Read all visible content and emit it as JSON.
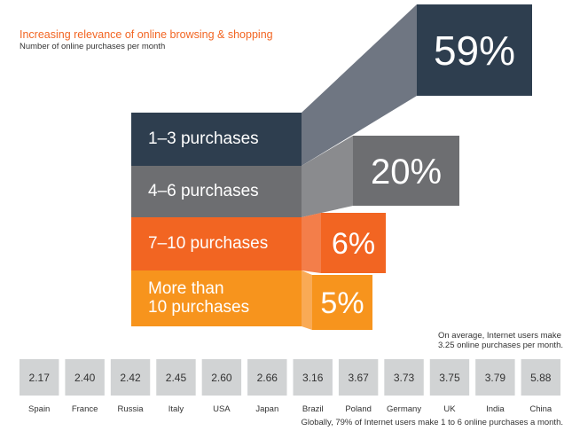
{
  "chart_data": [
    {
      "type": "funnel",
      "title": "Increasing relevance of online browsing & shopping",
      "subtitle": "Number of online purchases per month",
      "categories": [
        "1–3 purchases",
        "4–6 purchases",
        "7–10 purchases",
        "More than\n10 purchases"
      ],
      "values": [
        59,
        20,
        6,
        5
      ],
      "value_labels": [
        "59%",
        "20%",
        "6%",
        "5%"
      ],
      "colors": [
        "#2e3e4f",
        "#6d6e71",
        "#f26522",
        "#f7941d"
      ]
    },
    {
      "type": "tiles",
      "categories": [
        "Spain",
        "France",
        "Russia",
        "Italy",
        "USA",
        "Japan",
        "Brazil",
        "Poland",
        "Germany",
        "UK",
        "India",
        "China"
      ],
      "values": [
        2.17,
        2.4,
        2.42,
        2.45,
        2.6,
        2.66,
        3.16,
        3.67,
        3.73,
        3.75,
        3.79,
        5.88
      ],
      "value_labels": [
        "2.17",
        "2.40",
        "2.42",
        "2.45",
        "2.60",
        "2.66",
        "3.16",
        "3.67",
        "3.73",
        "3.75",
        "3.79",
        "5.88"
      ],
      "color": "#d1d3d4",
      "annotations": [
        "On average, Internet users make\n3.25 online purchases per month.",
        "Globally, 79% of Internet users make 1 to 6 online purchases a month."
      ]
    }
  ]
}
